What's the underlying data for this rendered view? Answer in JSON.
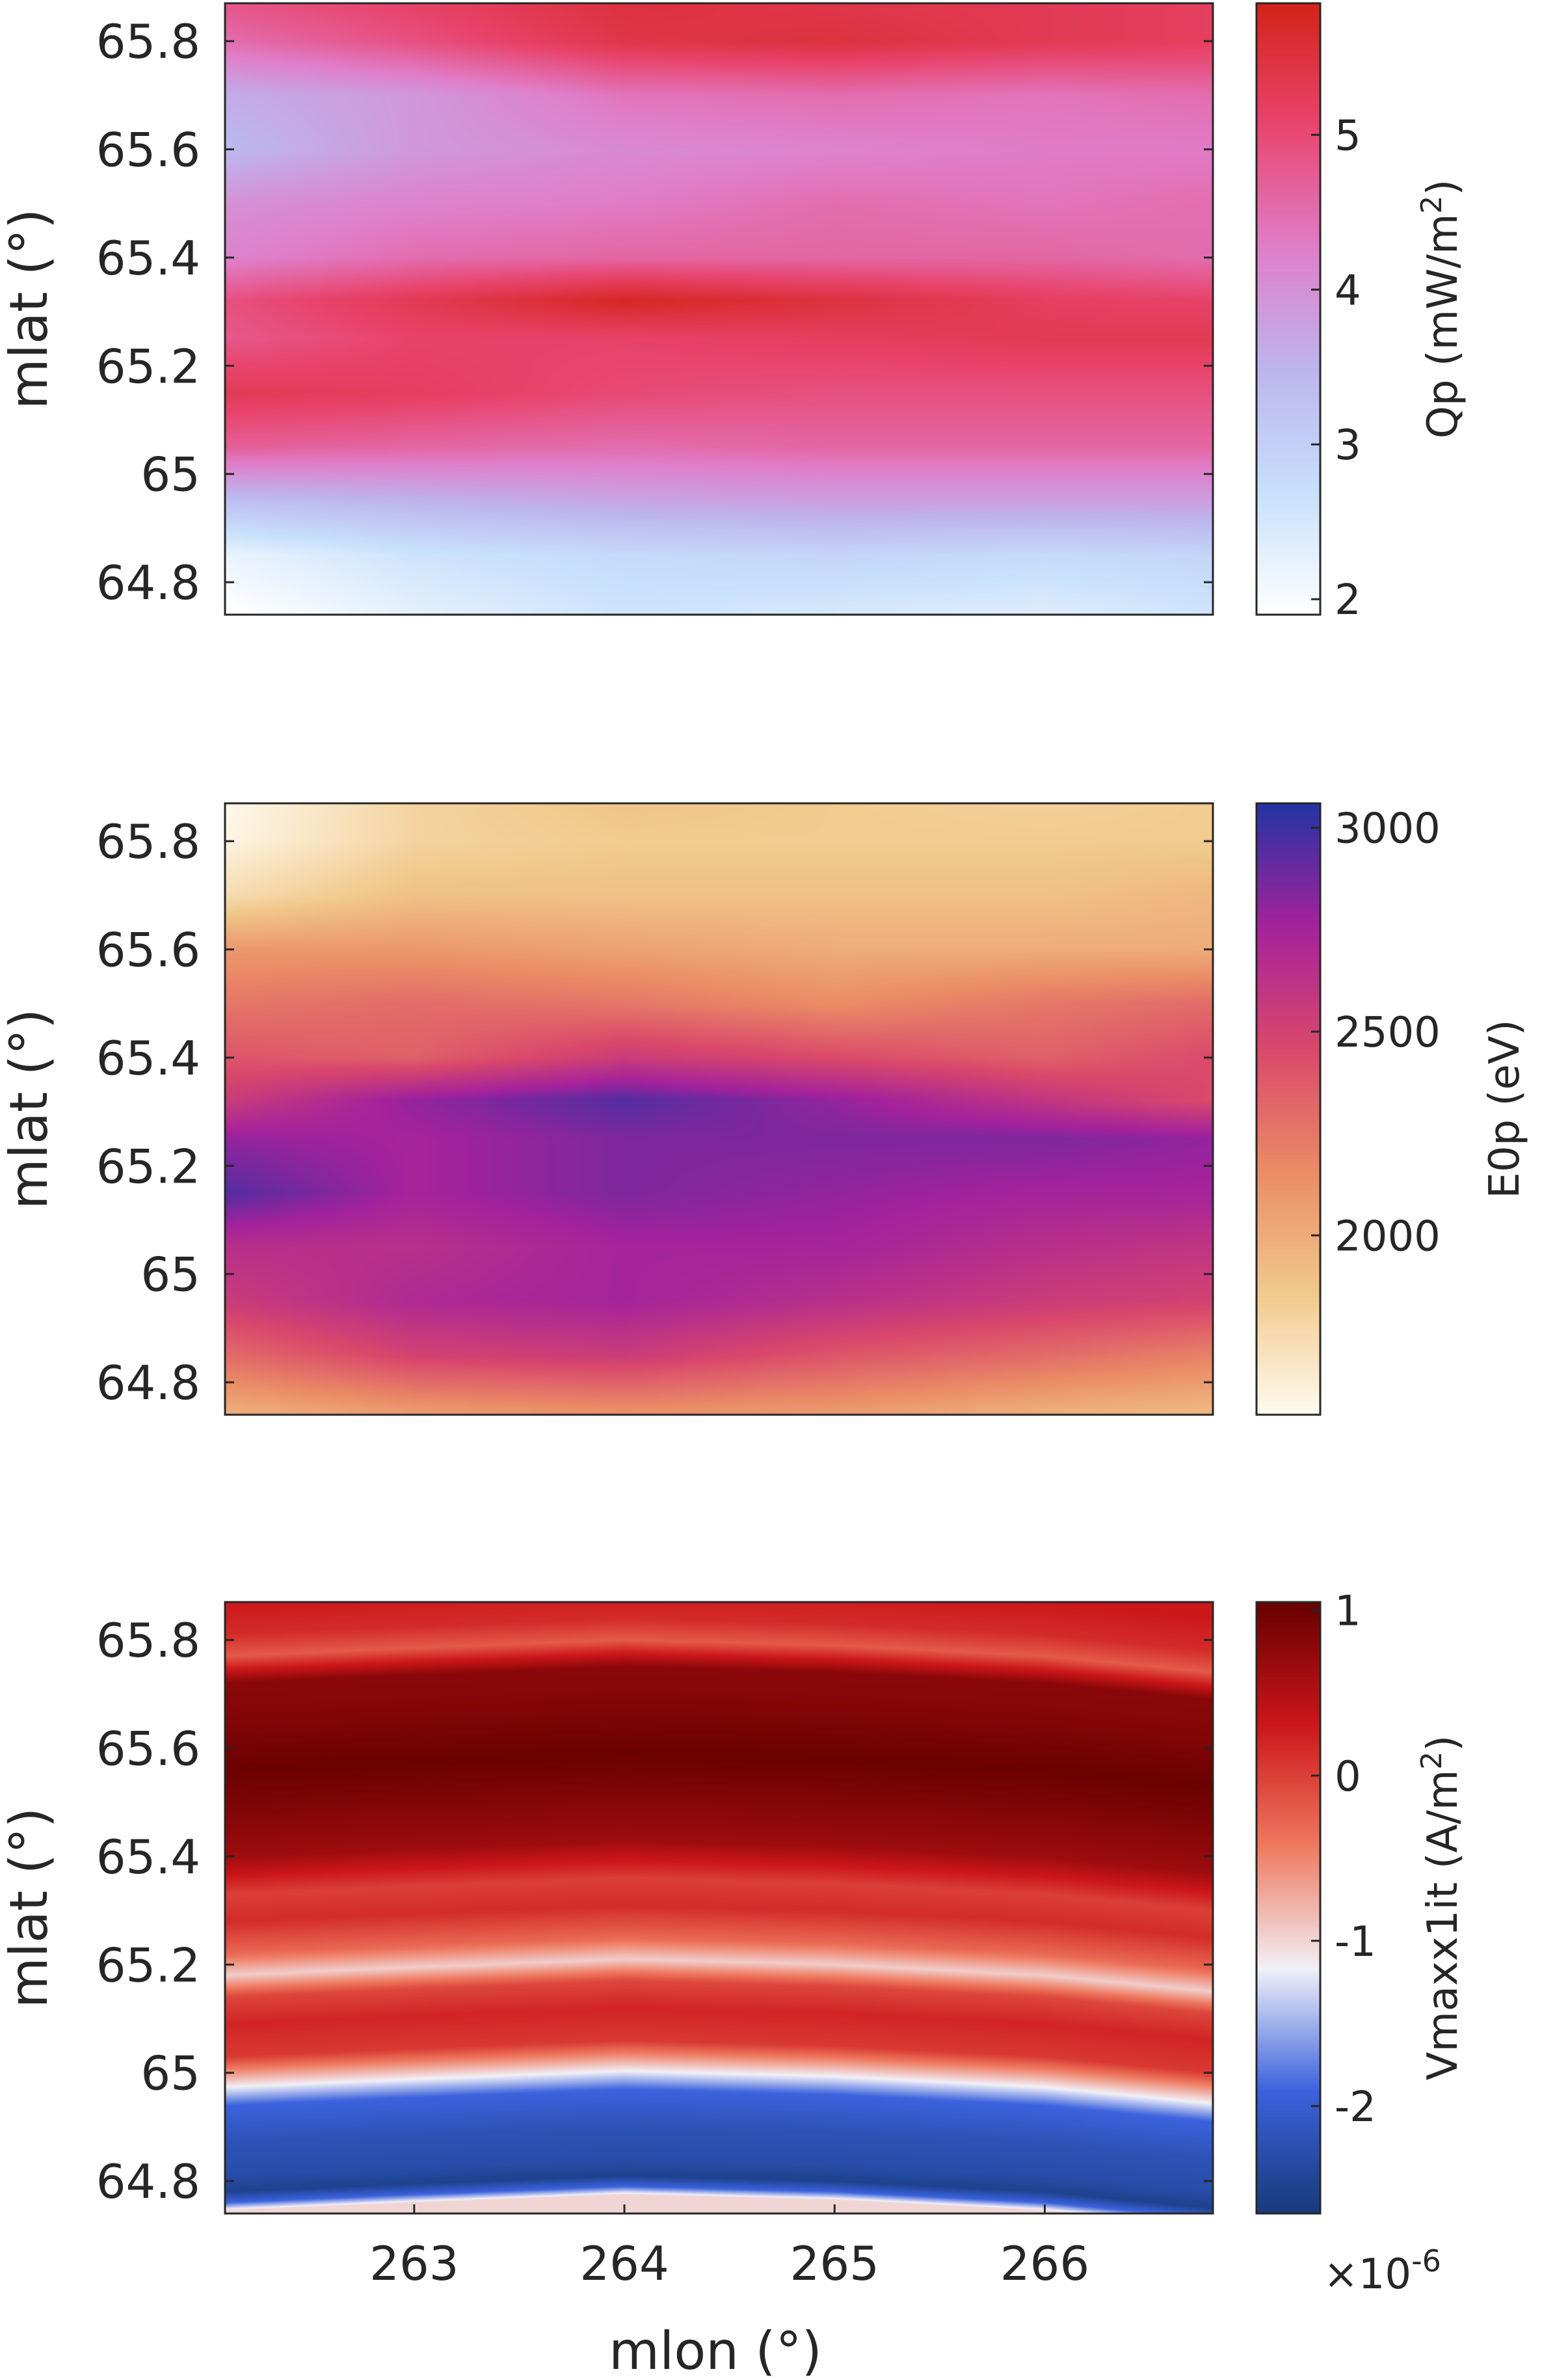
{
  "chart_data": [
    {
      "type": "heatmap",
      "panel": "top",
      "xlabel": "",
      "ylabel": "mlat (°)",
      "xlim": [
        262.1,
        266.8
      ],
      "ylim": [
        64.74,
        65.87
      ],
      "yticks": [
        64.8,
        65,
        65.2,
        65.4,
        65.6,
        65.8
      ],
      "ytick_labels": [
        "64.8",
        "65",
        "65.2",
        "65.4",
        "65.6",
        "65.8"
      ],
      "xticks": [],
      "colorbar": {
        "label_prefix": "Qp (mW/m",
        "label_sup": "2",
        "label_suffix": ")",
        "range": [
          1.9,
          5.85
        ],
        "ticks": [
          2,
          3,
          4,
          5
        ],
        "tick_labels": [
          "2",
          "3",
          "4",
          "5"
        ],
        "colors": [
          "#ffffff",
          "#c7e0fb",
          "#bdb5ee",
          "#e07ec9",
          "#e8456e",
          "#d42219"
        ]
      },
      "x": [
        262.1,
        263.0,
        264.0,
        265.0,
        266.0,
        266.8
      ],
      "y": [
        64.75,
        64.85,
        64.95,
        65.05,
        65.15,
        65.25,
        65.32,
        65.4,
        65.5,
        65.6,
        65.7,
        65.8,
        65.86
      ],
      "z": [
        [
          1.9,
          2.3,
          2.6,
          2.5,
          2.4,
          2.6
        ],
        [
          2.2,
          2.6,
          2.8,
          2.9,
          2.8,
          2.9
        ],
        [
          3.3,
          3.5,
          3.7,
          3.8,
          3.8,
          3.8
        ],
        [
          4.7,
          4.6,
          4.5,
          4.6,
          4.6,
          4.6
        ],
        [
          5.3,
          5.2,
          5.0,
          4.9,
          4.9,
          4.9
        ],
        [
          4.8,
          5.1,
          5.1,
          5.2,
          5.3,
          5.3
        ],
        [
          4.9,
          5.3,
          5.75,
          5.5,
          5.2,
          5.1
        ],
        [
          4.2,
          4.5,
          4.6,
          4.6,
          4.6,
          4.5
        ],
        [
          4.0,
          4.2,
          4.3,
          4.5,
          4.4,
          4.5
        ],
        [
          3.4,
          3.9,
          4.1,
          4.2,
          4.3,
          4.3
        ],
        [
          3.6,
          3.9,
          4.4,
          4.5,
          4.4,
          4.5
        ],
        [
          4.5,
          4.9,
          5.4,
          5.5,
          5.3,
          5.2
        ],
        [
          4.8,
          5.1,
          5.5,
          5.4,
          5.3,
          5.2
        ]
      ]
    },
    {
      "type": "heatmap",
      "panel": "middle",
      "xlabel": "",
      "ylabel": "mlat (°)",
      "xlim": [
        262.1,
        266.8
      ],
      "ylim": [
        64.74,
        65.87
      ],
      "yticks": [
        64.8,
        65,
        65.2,
        65.4,
        65.6,
        65.8
      ],
      "ytick_labels": [
        "64.8",
        "65",
        "65.2",
        "65.4",
        "65.6",
        "65.8"
      ],
      "xticks": [],
      "colorbar": {
        "label_prefix": "E0p (eV)",
        "label_sup": "",
        "label_suffix": "",
        "range": [
          1560,
          3060
        ],
        "ticks": [
          2000,
          2500,
          3000
        ],
        "tick_labels": [
          "2000",
          "2500",
          "3000"
        ],
        "colors": [
          "#fffbf0",
          "#f1c98c",
          "#ea8b66",
          "#d9486b",
          "#a4229c",
          "#2434a3"
        ]
      },
      "x": [
        262.1,
        263.0,
        264.0,
        265.0,
        266.0,
        266.8
      ],
      "y": [
        64.75,
        64.85,
        64.95,
        65.05,
        65.15,
        65.25,
        65.32,
        65.4,
        65.5,
        65.6,
        65.7,
        65.8,
        65.86
      ],
      "z": [
        [
          2000,
          2100,
          2150,
          2100,
          2000,
          1950
        ],
        [
          2300,
          2500,
          2550,
          2400,
          2300,
          2200
        ],
        [
          2550,
          2700,
          2750,
          2650,
          2550,
          2500
        ],
        [
          2650,
          2650,
          2750,
          2750,
          2650,
          2600
        ],
        [
          2950,
          2750,
          2850,
          2800,
          2750,
          2750
        ],
        [
          2800,
          2750,
          2850,
          2850,
          2850,
          2800
        ],
        [
          2550,
          2800,
          2950,
          2800,
          2600,
          2450
        ],
        [
          2400,
          2350,
          2550,
          2450,
          2350,
          2450
        ],
        [
          2250,
          2300,
          2250,
          2150,
          2250,
          2300
        ],
        [
          2100,
          2100,
          2050,
          2000,
          2000,
          2000
        ],
        [
          1750,
          1900,
          1900,
          1900,
          1900,
          1950
        ],
        [
          1600,
          1800,
          1850,
          1850,
          1850,
          1850
        ],
        [
          1580,
          1800,
          1880,
          1850,
          1820,
          1850
        ]
      ]
    },
    {
      "type": "heatmap",
      "panel": "bottom",
      "xlabel": "mlon (°)",
      "ylabel": "mlat (°)",
      "xlim": [
        262.1,
        266.8
      ],
      "ylim": [
        64.74,
        65.87
      ],
      "yticks": [
        64.8,
        65,
        65.2,
        65.4,
        65.6,
        65.8
      ],
      "ytick_labels": [
        "64.8",
        "65",
        "65.2",
        "65.4",
        "65.6",
        "65.8"
      ],
      "xticks": [
        263,
        264,
        265,
        266
      ],
      "xtick_labels": [
        "263",
        "264",
        "265",
        "266"
      ],
      "colorbar": {
        "label_prefix": "Vmaxx1it (A/m",
        "label_sup": "2",
        "label_suffix": ")",
        "range": [
          -2.65,
          1.05
        ],
        "ticks": [
          -2,
          -1,
          0,
          1
        ],
        "tick_labels": [
          "-2",
          "-1",
          "0",
          "1"
        ],
        "multiplier_base": "×10",
        "multiplier_exp": "-6",
        "colors": [
          "#173a7a",
          "#3b62dd",
          "#f1f0f8",
          "#ef7a60",
          "#cc161a",
          "#670000"
        ]
      },
      "x": [
        262.1,
        263.0,
        264.0,
        265.0,
        266.0,
        266.8
      ],
      "y": [
        64.745,
        64.76,
        64.78,
        64.81,
        64.87,
        64.94,
        64.99,
        65.03,
        65.09,
        65.14,
        65.18,
        65.22,
        65.28,
        65.33,
        65.4,
        65.48,
        65.56,
        65.65,
        65.72,
        65.77,
        65.81,
        65.87
      ],
      "shift": [
        0.0,
        0.015,
        0.03,
        0.02,
        0.0,
        -0.03
      ],
      "zprofile": [
        -1.0,
        -1.9,
        -2.5,
        -2.3,
        -2.2,
        -1.9,
        -0.8,
        0.05,
        0.2,
        -0.05,
        -0.95,
        -0.3,
        0.15,
        0.0,
        0.65,
        0.85,
        1.02,
        0.85,
        0.8,
        -0.2,
        0.15,
        0.3
      ]
    }
  ]
}
